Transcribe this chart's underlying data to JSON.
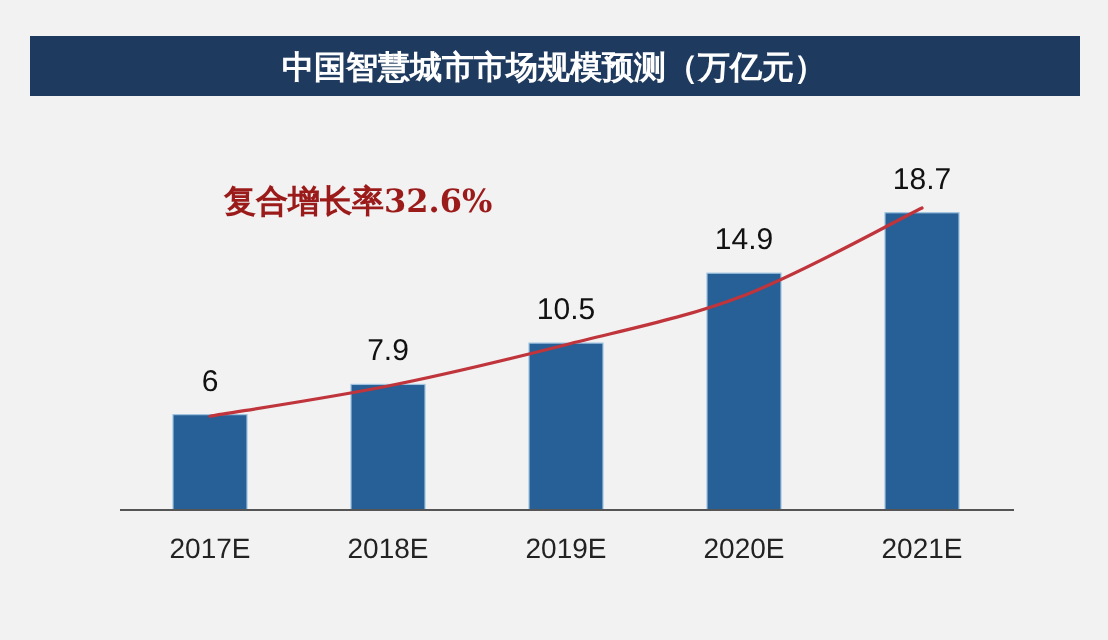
{
  "chart_data": {
    "type": "bar",
    "title": "中国智慧城市市场规模预测（万亿元）",
    "categories": [
      "2017E",
      "2018E",
      "2019E",
      "2020E",
      "2021E"
    ],
    "series": [
      {
        "color": "#266096",
        "values": [
          6,
          7.9,
          10.5,
          14.9,
          18.7
        ],
        "value_labels": [
          "6",
          "7.9",
          "10.5",
          "14.9",
          "18.7"
        ]
      },
      {
        "type": "line",
        "color": "#c0343c",
        "values": [
          5.9,
          7.8,
          10.4,
          13.5,
          19.0
        ]
      }
    ],
    "annotations": [
      "复合增长率32.6%"
    ]
  }
}
